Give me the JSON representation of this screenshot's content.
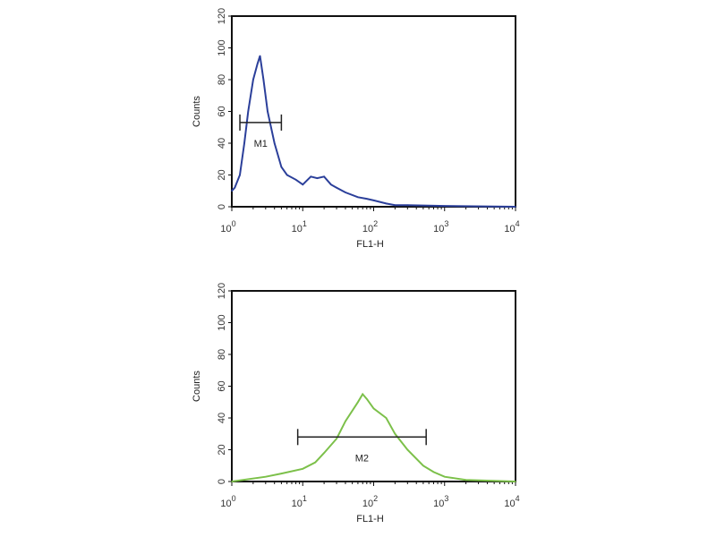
{
  "chart_data": [
    {
      "type": "line",
      "xlabel": "FL1-H",
      "ylabel": "Counts",
      "xscale": "log",
      "xlim": [
        1,
        10000
      ],
      "ylim": [
        0,
        120
      ],
      "x_ticks": [
        "10^0",
        "10^1",
        "10^2",
        "10^3",
        "10^4"
      ],
      "y_ticks": [
        0,
        20,
        40,
        60,
        80,
        100,
        120
      ],
      "grid": false,
      "color": "#2b3f9a",
      "series": [
        {
          "x": [
            1,
            1.1,
            1.3,
            1.5,
            1.7,
            2,
            2.3,
            2.5,
            2.8,
            3.2,
            4,
            5,
            6,
            8,
            10,
            13,
            16,
            20,
            25,
            30,
            40,
            60,
            80,
            100,
            150,
            200,
            300,
            1000,
            10000
          ],
          "y": [
            10,
            12,
            20,
            40,
            60,
            80,
            90,
            95,
            80,
            60,
            40,
            25,
            20,
            17,
            14,
            19,
            18,
            19,
            14,
            12,
            9,
            6,
            5,
            4,
            2,
            1,
            1,
            0.5,
            0
          ]
        }
      ],
      "marker": {
        "label": "M1",
        "x_range": [
          1.3,
          5
        ],
        "y": 53
      }
    },
    {
      "type": "line",
      "xlabel": "FL1-H",
      "ylabel": "Counts",
      "xscale": "log",
      "xlim": [
        1,
        10000
      ],
      "ylim": [
        0,
        120
      ],
      "x_ticks": [
        "10^0",
        "10^1",
        "10^2",
        "10^3",
        "10^4"
      ],
      "y_ticks": [
        0,
        20,
        40,
        60,
        80,
        100,
        120
      ],
      "grid": false,
      "color": "#7cc04a",
      "series": [
        {
          "x": [
            1,
            3,
            5,
            10,
            15,
            20,
            30,
            40,
            60,
            70,
            80,
            100,
            150,
            200,
            300,
            500,
            700,
            1000,
            2000,
            10000
          ],
          "y": [
            0,
            3,
            5,
            8,
            12,
            18,
            27,
            38,
            50,
            55,
            52,
            46,
            40,
            30,
            20,
            10,
            6,
            3,
            1,
            0
          ]
        }
      ],
      "marker": {
        "label": "M2",
        "x_range": [
          8.5,
          550
        ],
        "y": 28
      }
    }
  ]
}
